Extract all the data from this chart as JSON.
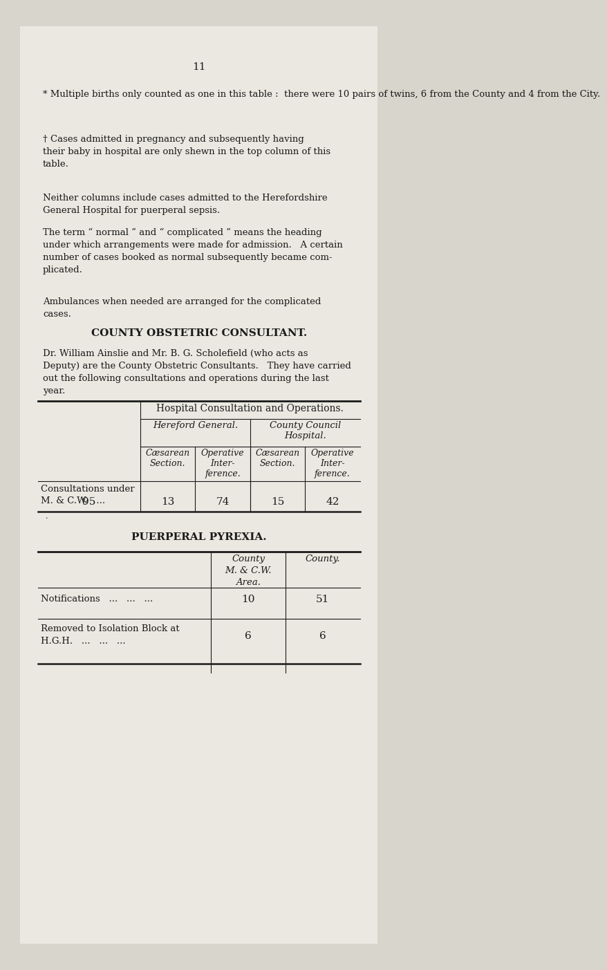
{
  "bg_color": "#d8d5cc",
  "page_color": "#eae8e0",
  "page_number": "11",
  "text_color": "#1a1a1a",
  "para1": "* Multiple births only counted as one in this table :  there were 10 pairs of twins, 6 from the County and 4 from the City.",
  "para2": "† Cases admitted in pregnancy and subsequently having\ntheir baby in hospital are only shewn in the top column of this\ntable.",
  "para3": "Neither columns include cases admitted to the Herefordshire\nGeneral Hospital for puerperal sepsis.",
  "para4": "The term “ normal ” and “ complicated ” means the heading\nunder which arrangements were made for admission.   A certain\nnumber of cases booked as normal subsequently became com-\nplicated.",
  "para5": "Ambulances when needed are arranged for the complicated\ncases.",
  "section_title": "COUNTY OBSTETRIC CONSULTANT.",
  "section_para": "Dr. William Ainslie and Mr. B. G. Scholefield (who acts as\nDeputy) are the County Obstetric Consultants.   They have carried\nout the following consultations and operations during the last\nyear.",
  "table1_header_main": "Hospital Consultation and Operations.",
  "table1_header_hereford": "Hereford General.",
  "table1_header_county": "County Council\nHospital.",
  "table1_row_label1": "Consultations under",
  "table1_row_label2": "M. & C.W.   ...",
  "table1_col1_header": "Cæsarean\nSection.",
  "table1_col2_header": "Operative\nInter-\nference.",
  "table1_col3_header": "Cæsarean\nSection.",
  "table1_col4_header": "Operative\nInter-\nference.",
  "table1_values": [
    "95",
    "13",
    "74",
    "15",
    "42"
  ],
  "table2_title": "PUERPERAL PYREXIA.",
  "table2_col1_header": "County\nM. & C.W.\nArea.",
  "table2_col2_header": "County.",
  "table2_row1_label": "Notifications   ...   ...   ...",
  "table2_row1_vals": [
    "10",
    "51"
  ],
  "table2_row2_label1": "Removed to Isolation Block at",
  "table2_row2_label2": "H.G.H.   ...   ...   ...",
  "table2_row2_vals": [
    "6",
    "6"
  ]
}
